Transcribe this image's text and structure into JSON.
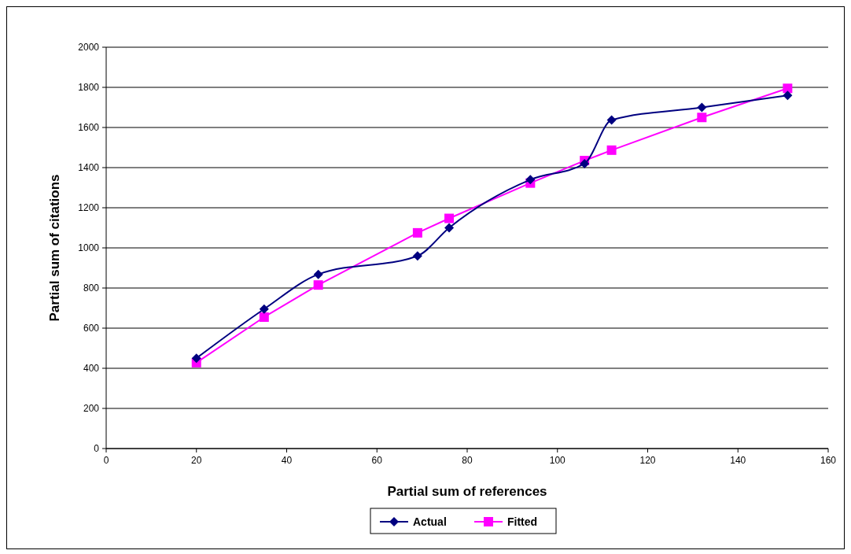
{
  "chart_data": {
    "type": "line",
    "xlabel": "Partial sum of references",
    "ylabel": "Partial sum of citations",
    "xlim": [
      0,
      160
    ],
    "xticks": [
      0,
      20,
      40,
      60,
      80,
      100,
      120,
      140,
      160
    ],
    "ylim": [
      0,
      2000
    ],
    "yticks": [
      0,
      200,
      400,
      600,
      800,
      1000,
      1200,
      1400,
      1600,
      1800,
      2000
    ],
    "grid": "y",
    "legend": "bottom",
    "series": [
      {
        "name": "Actual",
        "color": "#000080",
        "marker": "diamond",
        "x": [
          20,
          35,
          47,
          69,
          76,
          94,
          106,
          112,
          132,
          151
        ],
        "values": [
          450,
          695,
          868,
          960,
          1100,
          1340,
          1420,
          1637,
          1700,
          1760
        ]
      },
      {
        "name": "Fitted",
        "color": "#ff00ff",
        "marker": "square",
        "x": [
          20,
          35,
          47,
          69,
          76,
          94,
          106,
          112,
          132,
          151
        ],
        "values": [
          428,
          655,
          815,
          1075,
          1147,
          1323,
          1435,
          1487,
          1650,
          1795
        ]
      }
    ]
  }
}
